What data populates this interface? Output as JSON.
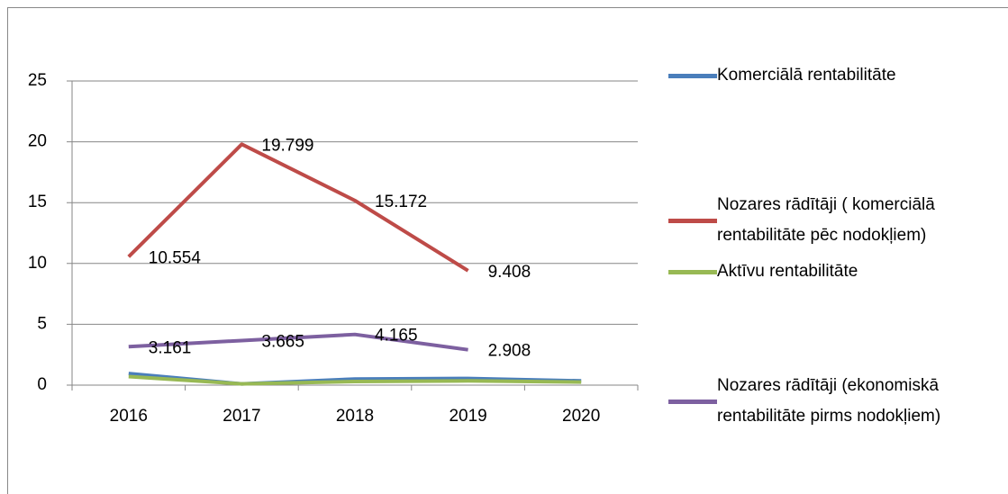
{
  "chart_data": {
    "type": "line",
    "categories": [
      "2016",
      "2017",
      "2018",
      "2019",
      "2020"
    ],
    "series": [
      {
        "name": "Komerciālā rentabilitāte",
        "color": "#4a7ebb",
        "values": [
          0.95,
          0.1,
          0.5,
          0.55,
          0.35
        ]
      },
      {
        "name": "Nozares rādītāji ( komerciālā rentabilitāte pēc nodokļiem)",
        "color": "#be4b48",
        "values": [
          10.554,
          19.799,
          15.172,
          9.408,
          null
        ],
        "data_labels": true
      },
      {
        "name": "Aktīvu rentabilitāte",
        "color": "#98b954",
        "values": [
          0.7,
          0.1,
          0.3,
          0.35,
          0.25
        ]
      },
      {
        "name": "Nozares rādītāji (ekonomiskā rentabilitāte pirms nodokļiem)",
        "color": "#7d60a0",
        "values": [
          3.161,
          3.665,
          4.165,
          2.908,
          null
        ],
        "data_labels": true
      }
    ],
    "ylim": [
      0,
      25
    ],
    "yticks": [
      0,
      5,
      10,
      15,
      20,
      25
    ],
    "grid": true,
    "legend": "right"
  }
}
